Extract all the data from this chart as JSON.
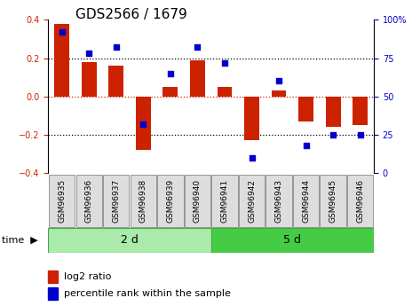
{
  "title": "GDS2566 / 1679",
  "samples": [
    "GSM96935",
    "GSM96936",
    "GSM96937",
    "GSM96938",
    "GSM96939",
    "GSM96940",
    "GSM96941",
    "GSM96942",
    "GSM96943",
    "GSM96944",
    "GSM96945",
    "GSM96946"
  ],
  "log2_ratio": [
    0.38,
    0.18,
    0.16,
    -0.28,
    0.05,
    0.19,
    0.05,
    -0.23,
    0.03,
    -0.13,
    -0.16,
    -0.15
  ],
  "percentile_rank": [
    92,
    78,
    82,
    32,
    65,
    82,
    72,
    10,
    60,
    18,
    25,
    25
  ],
  "groups": [
    {
      "label": "2 d",
      "start": 0,
      "end": 6,
      "color": "#AAEAAA"
    },
    {
      "label": "5 d",
      "start": 6,
      "end": 12,
      "color": "#44CC44"
    }
  ],
  "bar_color": "#CC2200",
  "dot_color": "#0000CC",
  "ylim": [
    -0.4,
    0.4
  ],
  "y2lim": [
    0,
    100
  ],
  "yticks": [
    -0.4,
    -0.2,
    0.0,
    0.2,
    0.4
  ],
  "y2ticks": [
    0,
    25,
    50,
    75,
    100
  ],
  "y2ticklabels": [
    "0",
    "25",
    "50",
    "75",
    "100%"
  ],
  "hlines_dotted": [
    0.2,
    -0.2
  ],
  "hline_zero": 0.0,
  "time_label": "time",
  "legend_bar_label": "log2 ratio",
  "legend_dot_label": "percentile rank within the sample",
  "title_fontsize": 11,
  "tick_fontsize": 7,
  "label_fontsize": 8,
  "group_label_fontsize": 9,
  "sample_box_color": "#DDDDDD",
  "sample_box_edge": "#888888"
}
